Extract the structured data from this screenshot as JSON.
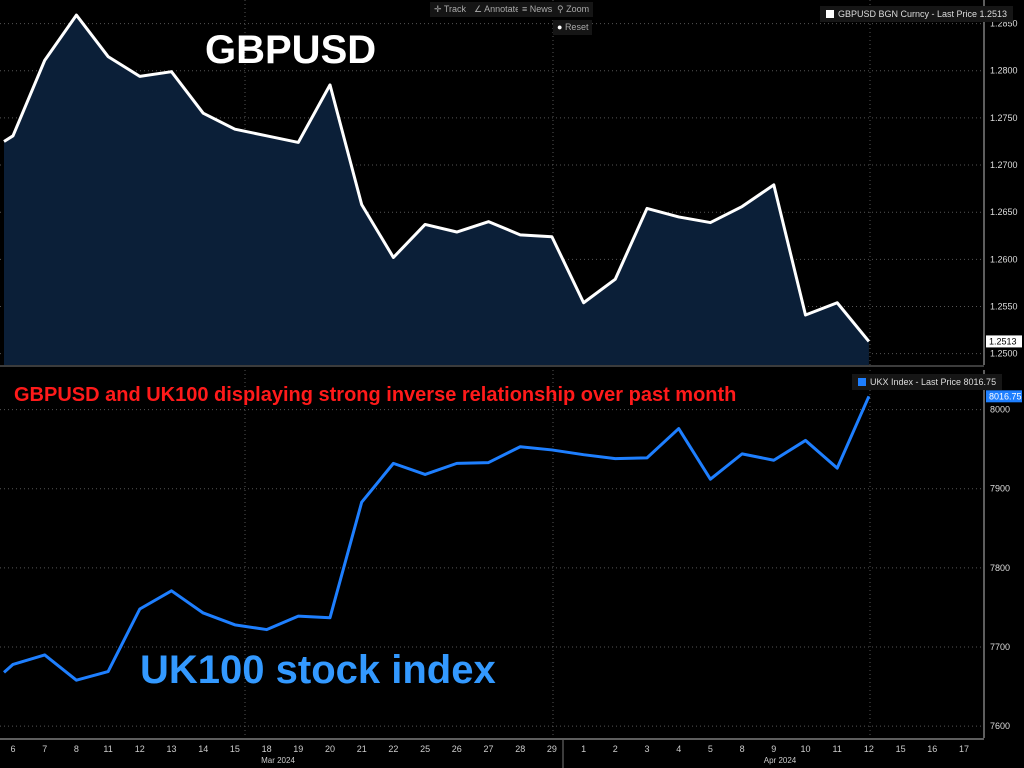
{
  "toolbar": {
    "track": "Track",
    "annotate": "Annotate",
    "news": "News",
    "zoom": "Zoom",
    "reset": "Reset"
  },
  "annotations": {
    "top_title": "GBPUSD",
    "subtitle": "GBPUSD and UK100 displaying strong inverse relationship over past month",
    "bottom_title": "UK100 stock index"
  },
  "colors": {
    "gbp": "#ffffff",
    "gbp_fill": "#0b1f38",
    "ukx": "#1e7fff",
    "subtitle": "#ff1a1a",
    "bottom_title": "#3399ff"
  },
  "chart_data": [
    {
      "type": "area",
      "title": "GBPUSD",
      "legend": "GBPUSD BGN Curncy - Last Price 1.2513",
      "last_label": "1.2513",
      "ylim": [
        1.2488,
        1.2875
      ],
      "yticks": [
        "1.2500",
        "1.2550",
        "1.2600",
        "1.2650",
        "1.2700",
        "1.2750",
        "1.2800",
        "1.2850"
      ],
      "values": [
        1.2731,
        1.2811,
        1.2859,
        1.2815,
        1.2794,
        1.2799,
        1.2755,
        1.2738,
        1.2731,
        1.2724,
        1.2785,
        1.2658,
        1.2602,
        1.2637,
        1.2629,
        1.264,
        1.2626,
        1.2624,
        1.2554,
        1.2579,
        1.2654,
        1.2645,
        1.2639,
        1.2656,
        1.2679,
        1.2541,
        1.2554,
        1.2513
      ]
    },
    {
      "type": "line",
      "title": "UK100 stock index",
      "legend": "UKX Index - Last Price 8016.75",
      "last_label": "8016.75",
      "ylim": [
        7585,
        8050
      ],
      "yticks": [
        "7600",
        "7700",
        "7800",
        "7900",
        "8000"
      ],
      "values": [
        7678,
        7690,
        7658,
        7669,
        7748,
        7771,
        7743,
        7728,
        7722,
        7739,
        7737,
        7883,
        7932,
        7918,
        7932,
        7933,
        7953,
        7949,
        7943,
        7938,
        7939,
        7976,
        7912,
        7944,
        7936,
        7961,
        7926,
        8016.75
      ]
    }
  ],
  "xaxis": {
    "ticks": [
      "6",
      "7",
      "8",
      "11",
      "12",
      "13",
      "14",
      "15",
      "18",
      "19",
      "20",
      "21",
      "22",
      "25",
      "26",
      "27",
      "28",
      "29",
      "1",
      "2",
      "3",
      "4",
      "5",
      "8",
      "9",
      "10",
      "11",
      "12",
      "15",
      "16",
      "17"
    ],
    "months": [
      "Mar 2024",
      "Apr 2024"
    ]
  }
}
